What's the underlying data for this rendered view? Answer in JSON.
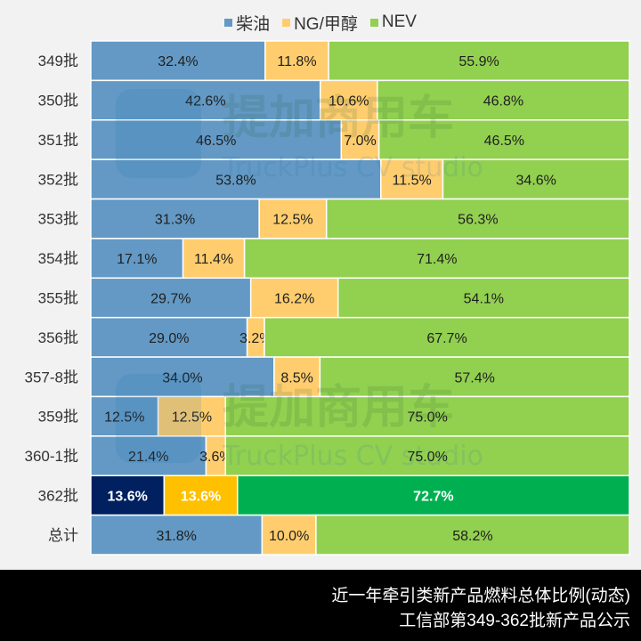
{
  "chart_data": {
    "type": "bar",
    "orientation": "horizontal",
    "stacked": "percent",
    "title": "",
    "xlabel": "",
    "ylabel": "",
    "xlim": [
      0,
      100
    ],
    "legend_position": "top",
    "categories": [
      "349批",
      "350批",
      "351批",
      "352批",
      "353批",
      "354批",
      "355批",
      "356批",
      "357-8批",
      "359批",
      "360-1批",
      "362批",
      "总计"
    ],
    "series": [
      {
        "name": "柴油",
        "color": "#6399c4",
        "values": [
          32.4,
          42.6,
          46.5,
          53.8,
          31.3,
          17.1,
          29.7,
          29.0,
          34.0,
          12.5,
          21.4,
          13.6,
          31.8
        ],
        "labels": [
          "32.4%",
          "42.6%",
          "46.5%",
          "53.8%",
          "31.3%",
          "17.1%",
          "29.7%",
          "29.0%",
          "34.0%",
          "12.5%",
          "21.4%",
          "13.6%",
          "31.8%"
        ]
      },
      {
        "name": "NG/甲醇",
        "color": "#ffcd6e",
        "values": [
          11.8,
          10.6,
          7.0,
          11.5,
          12.5,
          11.4,
          16.2,
          3.2,
          8.5,
          12.5,
          3.6,
          13.6,
          10.0
        ],
        "labels": [
          "11.8%",
          "10.6%",
          "7.0%",
          "11.5%",
          "12.5%",
          "11.4%",
          "16.2%",
          "3.2%",
          "8.5%",
          "12.5%",
          "3.6%",
          "13.6%",
          "10.0%"
        ]
      },
      {
        "name": "NEV",
        "color": "#92d050",
        "values": [
          55.9,
          46.8,
          46.5,
          34.6,
          56.3,
          71.4,
          54.1,
          67.7,
          57.4,
          75.0,
          75.0,
          72.7,
          58.2
        ],
        "labels": [
          "55.9%",
          "46.8%",
          "46.5%",
          "34.6%",
          "56.3%",
          "71.4%",
          "54.1%",
          "67.7%",
          "57.4%",
          "75.0%",
          "75.0%",
          "72.7%",
          "58.2%"
        ]
      }
    ],
    "highlight": {
      "category_index": 11,
      "colors": [
        "#002060",
        "#ffc000",
        "#00b050"
      ],
      "label_color": "#ffffff"
    }
  },
  "watermark": {
    "cn": "提加商用车",
    "en": "TruckPlus CV studio"
  },
  "footer": {
    "line1": "近一年牵引类新产品燃料总体比例(动态)",
    "line2": "工信部第349-362批新产品公示"
  },
  "colors": {
    "background": "#f2f2f2",
    "footer_bg": "#000000",
    "label_text": "#1f1f1f"
  }
}
